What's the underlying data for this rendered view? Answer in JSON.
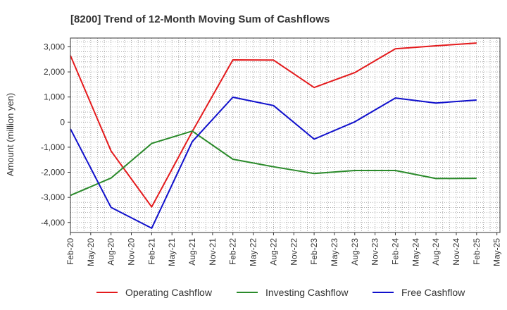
{
  "chart_data": {
    "type": "line",
    "title": "[8200]  Trend of 12-Month Moving Sum of Cashflows",
    "ylabel": "Amount (million yen)",
    "xlabel": "",
    "ylim": [
      -4400,
      3350
    ],
    "yticks": [
      3000,
      2000,
      1000,
      0,
      -1000,
      -2000,
      -3000,
      -4000
    ],
    "ytick_labels": [
      "3,000",
      "2,000",
      "1,000",
      "0",
      "-1,000",
      "-2,000",
      "-3,000",
      "-4,000"
    ],
    "categories": [
      "Feb-20",
      "May-20",
      "Aug-20",
      "Nov-20",
      "Feb-21",
      "May-21",
      "Aug-21",
      "Nov-21",
      "Feb-22",
      "May-22",
      "Aug-22",
      "Nov-22",
      "Feb-23",
      "May-23",
      "Aug-23",
      "Nov-23",
      "Feb-24",
      "May-24",
      "Aug-24",
      "Nov-24",
      "Feb-25",
      "May-25"
    ],
    "grid": true,
    "legend_position": "bottom",
    "series": [
      {
        "name": "Operating Cashflow",
        "color": "#e41a1c",
        "values": [
          2650,
          null,
          -1150,
          null,
          -3380,
          null,
          -380,
          null,
          2480,
          null,
          2470,
          null,
          1380,
          null,
          1970,
          null,
          2920,
          null,
          3040,
          null,
          3150,
          null
        ]
      },
      {
        "name": "Investing Cashflow",
        "color": "#2a8a2a",
        "values": [
          -2920,
          null,
          -2230,
          null,
          -850,
          null,
          -360,
          null,
          -1480,
          null,
          -1780,
          null,
          -2050,
          null,
          -1930,
          null,
          -1930,
          null,
          -2250,
          null,
          -2240,
          null
        ]
      },
      {
        "name": "Free Cashflow",
        "color": "#1010cc",
        "values": [
          -270,
          null,
          -3400,
          null,
          -4230,
          null,
          -780,
          null,
          990,
          null,
          660,
          null,
          -680,
          null,
          10,
          null,
          960,
          null,
          760,
          null,
          880,
          null
        ]
      }
    ]
  }
}
